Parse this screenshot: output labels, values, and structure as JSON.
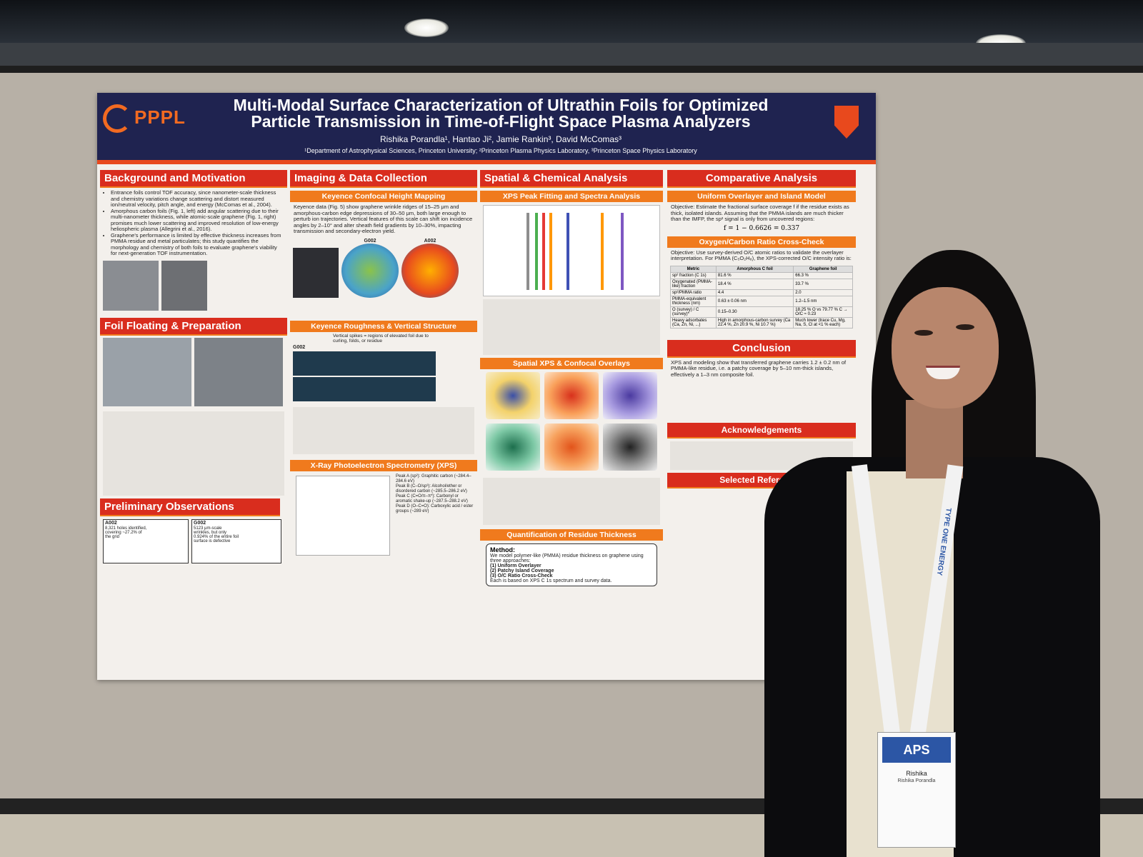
{
  "poster": {
    "title_line1": "Multi-Modal Surface Characterization of Ultrathin Foils for Optimized",
    "title_line2": "Particle Transmission in Time-of-Flight Space Plasma Analyzers",
    "authors": "Rishika Porandla¹, Hantao Ji², Jamie Rankin³, David McComas³",
    "affiliations": "¹Department of Astrophysical Sciences, Princeton University; ²Princeton Plasma Physics Laboratory, ³Princeton Space Physics Laboratory",
    "logo_text": "PPPL",
    "colors": {
      "header_bg": "#1f2350",
      "section_red": "#d92d1e",
      "sub_orange": "#f07a1d",
      "logo_orange": "#f26a21"
    },
    "sections": {
      "background": "Background and Motivation",
      "imaging": "Imaging & Data Collection",
      "spatial": "Spatial & Chemical Analysis",
      "comparative": "Comparative Analysis",
      "foil": "Foil Floating & Preparation",
      "prelim": "Preliminary Observations",
      "conclusion": "Conclusion",
      "ack": "Acknowledgements",
      "refs": "Selected References"
    },
    "subsections": {
      "keyence": "Keyence Confocal Height Mapping",
      "xps_fit": "XPS Peak Fitting and Spectra Analysis",
      "overlayer": "Uniform Overlayer and Island Model",
      "roughness": "Keyence Roughness & Vertical Structure",
      "overlays": "Spatial XPS & Confocal Overlays",
      "ocratio": "Oxygen/Carbon Ratio Cross-Check",
      "xps": "X-Ray Photoelectron Spectrometry (XPS)",
      "residue": "Quantification of Residue Thickness"
    },
    "background_bullets": [
      "Entrance foils control TOF accuracy, since nanometer-scale thickness and chemistry variations change scattering and distort measured ion/neutral velocity, pitch angle, and energy (McComas et al., 2004).",
      "Amorphous carbon foils (Fig. 1, left) add angular scattering due to their multi-nanometer thickness, while atomic-scale graphene (Fig. 1, right) promises much lower scattering and improved resolution of low-energy heliospheric plasma (Allegrini et al., 2016).",
      "Graphene's performance is limited by effective thickness increases from PMMA residue and metal particulates; this study quantifies the morphology and chemistry of both foils to evaluate graphene's viability for next-generation TOF instrumentation."
    ],
    "keyence_bullet": "Keyence data (Fig. 5) show graphene wrinkle ridges of 15–25 μm and amorphous-carbon edge depressions of 30–50 μm, both large enough to perturb ion trajectories. Vertical features of this scale can shift ion incidence angles by 2–10° and alter sheath field gradients by 10–30%, impacting transmission and secondary-electron yield.",
    "map_labels": [
      "G002",
      "A002"
    ],
    "objective_text": "Objective: Estimate the fractional surface coverage f if the residue exists as thick, isolated islands. Assuming that the PMMA islands are much thicker than the IMFP, the sp² signal is only from uncovered regions:",
    "equation": "f = 1 − 0.6626 = 0.337",
    "oc_objective": "Objective: Use survey-derived O/C atomic ratios to validate the overlayer interpretation. For PMMA (C₅O₂H₈), the XPS-corrected O/C intensity ratio is:",
    "table": {
      "headers": [
        "Metric",
        "Amorphous C foil",
        "Graphene foil"
      ],
      "rows": [
        [
          "sp² fraction (C 1s)",
          "81.6 %",
          "66.3 %"
        ],
        [
          "Oxygenated (PMMA-like) fraction",
          "18.4 %",
          "33.7 %"
        ],
        [
          "sp²/PMMA ratio",
          "4.4",
          "2.0"
        ],
        [
          "PMMA-equivalent thickness (nm)",
          "0.63 ± 0.06 nm",
          "1.2–1.5 nm"
        ],
        [
          "O (survey) / C (survey)*",
          "0.15–0.30",
          "18.25 % O vs 79.77 % C → O/C ≈ 0.23"
        ],
        [
          "Heavy adsorbates (Ca, Zn, Ni, ...)",
          "High in amorphous-carbon survey (Ca 22.4 %, Zn 20.9 %, Ni 10.7 %)",
          "Much lower (trace Cu, Mg, Na, S, Cl at <1 % each)"
        ]
      ]
    },
    "roughness_label": "G002",
    "roughness_note": "Vertical spikes = regions of elevated foil due to curling, folds, or residue",
    "xps_peaks": [
      "Peak A (sp²): Graphitic carbon (~284.4–284.6 eV)",
      "Peak B (C–O/sp³): Alcohol/ether or disordered carbon (~285.5–286.2 eV)",
      "Peak C (C=O/π–π*): Carbonyl or aromatic shake-up (~287.5–288.2 eV)",
      "Peak D (O–C=O): Carboxylic acid / ester groups (~289 eV)"
    ],
    "method_title": "Method:",
    "method_lines": [
      "We model polymer-like (PMMA) residue thickness on graphene using three approaches:",
      "(1) Uniform Overlayer",
      "(2) Patchy Island Coverage",
      "(3) O/C Ratio Cross-Check",
      "Each is based on XPS C 1s spectrum and survey data."
    ],
    "prelim": {
      "a_label": "A002",
      "a_text": "8,321 holes identified, covering ~27.2% of the grid",
      "g_label": "G002",
      "g_text": "5123 μm-scale wrinkles, but only 0.924% of the entire foil surface is defective"
    },
    "conclusion_text": "XPS and modeling show that transferred graphene carries 1.2 ± 0.2 nm of PMMA-like residue, i.e. a patchy coverage by 5–10 nm-thick islands, effectively a 1–3 nm composite foil."
  },
  "badge": {
    "org": "APS",
    "name": "Rishika",
    "full_name": "Rishika Porandla",
    "lanyard": "TYPE ONE ENERGY"
  }
}
